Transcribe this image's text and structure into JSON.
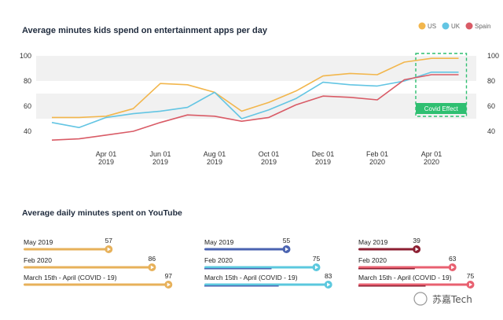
{
  "chart_data": [
    {
      "type": "line",
      "title": "Average minutes kids spend on entertainment apps per day",
      "x": [
        "2019-02",
        "2019-03",
        "2019-04",
        "2019-05",
        "2019-06",
        "2019-07",
        "2019-08",
        "2019-09",
        "2019-10",
        "2019-11",
        "2019-12",
        "2020-01",
        "2020-02",
        "2020-03",
        "2020-04",
        "2020-05"
      ],
      "x_ticks": [
        {
          "month": "Apr 01",
          "year": "2019",
          "index": 2
        },
        {
          "month": "Jun 01",
          "year": "2019",
          "index": 4
        },
        {
          "month": "Aug 01",
          "year": "2019",
          "index": 6
        },
        {
          "month": "Oct 01",
          "year": "2019",
          "index": 8
        },
        {
          "month": "Dec 01",
          "year": "2019",
          "index": 10
        },
        {
          "month": "Feb 01",
          "year": "2020",
          "index": 12
        },
        {
          "month": "Apr 01",
          "year": "2020",
          "index": 14
        }
      ],
      "series": [
        {
          "name": "US",
          "color": "#f2b64c",
          "values": [
            51,
            51,
            52,
            58,
            78,
            77,
            71,
            56,
            63,
            72,
            84,
            86,
            85,
            95,
            98,
            98
          ]
        },
        {
          "name": "UK",
          "color": "#63c5e3",
          "values": [
            47,
            43,
            51,
            54,
            56,
            59,
            71,
            50,
            57,
            66,
            79,
            77,
            76,
            80,
            87,
            87
          ]
        },
        {
          "name": "Spain",
          "color": "#d95b66",
          "values": [
            33,
            34,
            37,
            40,
            47,
            53,
            52,
            48,
            51,
            61,
            68,
            67,
            65,
            81,
            85,
            85
          ]
        }
      ],
      "y_ticks": [
        40,
        60,
        80,
        100
      ],
      "ylim": [
        30,
        105
      ],
      "grid": true,
      "legend": "top-right",
      "annotation": {
        "label": "Covid Effect",
        "x_start": 14,
        "x_end": 15,
        "color": "#2fbf71"
      }
    },
    {
      "type": "bar",
      "title": "Average daily minutes spent on YouTube",
      "max": 100,
      "groups": [
        {
          "color": "#e7b15a",
          "bars": [
            {
              "label": "May 2019",
              "value": 57
            },
            {
              "label": "Feb 2020",
              "value": 86
            },
            {
              "label": "March 15th - April (COVID - 19)",
              "value": 97
            }
          ]
        },
        {
          "color": "#4a63b0",
          "light": "#5bc8de",
          "bars": [
            {
              "label": "May 2019",
              "value": 55
            },
            {
              "label": "Feb 2020",
              "value": 75
            },
            {
              "label": "March 15th - April (COVID - 19)",
              "value": 83
            }
          ]
        },
        {
          "color": "#8c1f32",
          "light": "#e86070",
          "bars": [
            {
              "label": "May 2019",
              "value": 39
            },
            {
              "label": "Feb 2020",
              "value": 63
            },
            {
              "label": "March 15th - April (COVID - 19)",
              "value": 75
            }
          ]
        }
      ]
    }
  ],
  "watermark": "苏嘉Tech"
}
